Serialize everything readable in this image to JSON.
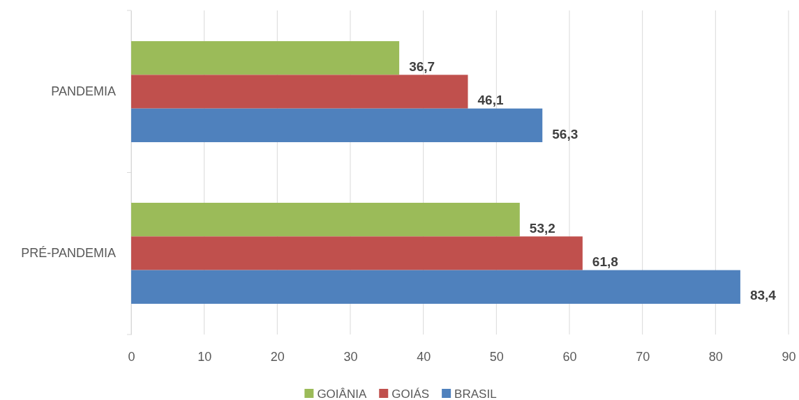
{
  "chart_data": {
    "type": "bar",
    "orientation": "horizontal",
    "categories": [
      "PANDEMIA",
      "PRÉ-PANDEMIA"
    ],
    "series": [
      {
        "name": "GOIÂNIA",
        "color": "#9bbb59",
        "values": [
          36.7,
          53.2
        ],
        "value_labels": [
          "36,7",
          "53,2"
        ]
      },
      {
        "name": "GOIÁS",
        "color": "#c0504d",
        "values": [
          46.1,
          61.8
        ],
        "value_labels": [
          "46,1",
          "61,8"
        ]
      },
      {
        "name": "BRASIL",
        "color": "#4f81bd",
        "values": [
          56.3,
          83.4
        ],
        "value_labels": [
          "56,3",
          "83,4"
        ]
      }
    ],
    "xlim": [
      0,
      90
    ],
    "xticks": [
      0,
      10,
      20,
      30,
      40,
      50,
      60,
      70,
      80,
      90
    ],
    "grid": "x",
    "legend": "bottom"
  }
}
